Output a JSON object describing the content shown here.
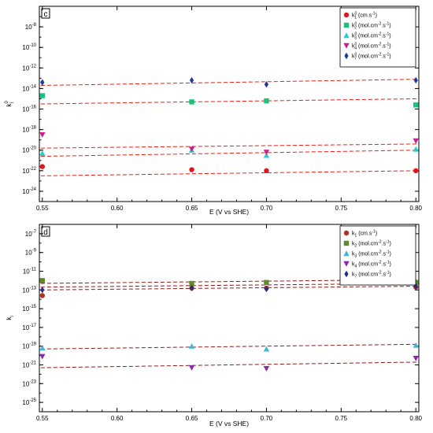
{
  "chart_data": [
    {
      "type": "scatter",
      "panel_label": "c",
      "xlabel": "E (V vs SHE)",
      "ylabel_main": "k",
      "ylabel_sub": "i",
      "ylabel_sup": "0",
      "y_scale": "log",
      "xlim": [
        0.548,
        0.802
      ],
      "ylim_exp": [
        -25,
        -6
      ],
      "x_ticks": [
        "0.55",
        "0.60",
        "0.65",
        "0.70",
        "0.75",
        "0.80"
      ],
      "y_ticks": [
        {
          "base": "10",
          "exp": "-8",
          "e": -8
        },
        {
          "base": "10",
          "exp": "-10",
          "e": -10
        },
        {
          "base": "10",
          "exp": "-12",
          "e": -12
        },
        {
          "base": "10",
          "exp": "-14",
          "e": -14
        },
        {
          "base": "10",
          "exp": "-16",
          "e": -16
        },
        {
          "base": "10",
          "exp": "-18",
          "e": -18
        },
        {
          "base": "10",
          "exp": "-20",
          "e": -20
        },
        {
          "base": "10",
          "exp": "-22",
          "e": -22
        },
        {
          "base": "10",
          "exp": "-24",
          "e": -24
        }
      ],
      "grid": false,
      "legend_position": "top-right",
      "fit_line_color": "#e0201a",
      "series": [
        {
          "name": "k₁⁰ (cm.s⁻¹)",
          "label_main": "k",
          "label_sup": "0",
          "label_sub": "1",
          "label_unit": " (cm.s",
          "label_unit_sup": "-1",
          "label_tail": ")",
          "color": "#e8121a",
          "marker": "circle",
          "x": [
            0.55,
            0.65,
            0.7,
            0.8
          ],
          "y_exp": [
            -21.6,
            -21.9,
            -22.0,
            -22.0
          ],
          "fit_exp": [
            -22.5,
            -22.0
          ]
        },
        {
          "name": "k₂⁰ (mol.cm⁻².s⁻¹)",
          "label_main": "k",
          "label_sup": "0",
          "label_sub": "2",
          "label_unit": " (mol.cm",
          "label_unit_sup": "-2",
          "label_mid": ".s",
          "label_mid_sup": "-1",
          "label_tail": ")",
          "color": "#19c47a",
          "marker": "square",
          "x": [
            0.55,
            0.65,
            0.7,
            0.8
          ],
          "y_exp": [
            -14.7,
            -15.3,
            -15.2,
            -15.6
          ],
          "fit_exp": [
            -15.5,
            -15.0
          ]
        },
        {
          "name": "k₃⁰ (mol.cm⁻².s⁻¹)",
          "label_main": "k",
          "label_sup": "0",
          "label_sub": "3",
          "label_unit": " (mol.cm",
          "label_unit_sup": "-2",
          "label_mid": ".s",
          "label_mid_sup": "-1",
          "label_tail": ")",
          "color": "#1fd0cc",
          "marker": "triangle-up",
          "x": [
            0.55,
            0.65,
            0.7,
            0.8
          ],
          "y_exp": [
            -20.3,
            -20.0,
            -20.5,
            -19.9
          ],
          "fit_exp": [
            -20.6,
            -20.0
          ]
        },
        {
          "name": "k₄⁰ (mol.cm⁻².s⁻¹)",
          "label_main": "k",
          "label_sup": "0",
          "label_sub": "4",
          "label_unit": " (mol.cm",
          "label_unit_sup": "-2",
          "label_mid": ".s",
          "label_mid_sup": "-1",
          "label_tail": ")",
          "color": "#cc1f8f",
          "marker": "triangle-down",
          "x": [
            0.55,
            0.65,
            0.7,
            0.8
          ],
          "y_exp": [
            -18.5,
            -19.9,
            -20.2,
            -19.1
          ],
          "fit_exp": [
            -19.8,
            -19.4
          ]
        },
        {
          "name": "k₇⁰ (mol.cm⁻².s⁻¹)",
          "label_main": "k",
          "label_sup": "0",
          "label_sub": "7",
          "label_unit": " (mol.cm",
          "label_unit_sup": "-2",
          "label_mid": ".s",
          "label_mid_sup": "-1",
          "label_tail": ")",
          "color": "#1a3a9c",
          "marker": "diamond",
          "x": [
            0.55,
            0.65,
            0.7,
            0.8
          ],
          "y_exp": [
            -13.4,
            -13.2,
            -13.6,
            -13.2
          ],
          "fit_exp": [
            -13.7,
            -13.1
          ]
        }
      ]
    },
    {
      "type": "scatter",
      "panel_label": "d",
      "xlabel": "E (V vs SHE)",
      "ylabel_main": "k",
      "ylabel_sub": "i",
      "ylabel_sup": "",
      "y_scale": "log",
      "xlim": [
        0.548,
        0.802
      ],
      "ylim_exp": [
        -26,
        -6
      ],
      "x_ticks": [
        "0.55",
        "0.60",
        "0.65",
        "0.70",
        "0.75",
        "0.80"
      ],
      "y_ticks": [
        {
          "base": "10",
          "exp": "-7",
          "e": -7
        },
        {
          "base": "10",
          "exp": "-9",
          "e": -9
        },
        {
          "base": "10",
          "exp": "-11",
          "e": -11
        },
        {
          "base": "10",
          "exp": "-13",
          "e": -13
        },
        {
          "base": "10",
          "exp": "-15",
          "e": -15
        },
        {
          "base": "10",
          "exp": "-17",
          "e": -17
        },
        {
          "base": "10",
          "exp": "-19",
          "e": -19
        },
        {
          "base": "10",
          "exp": "-21",
          "e": -21
        },
        {
          "base": "10",
          "exp": "-23",
          "e": -23
        },
        {
          "base": "10",
          "exp": "-25",
          "e": -25
        }
      ],
      "grid": false,
      "legend_position": "top-right",
      "fit_line_color": "#8b1a1a",
      "series": [
        {
          "name": "k₁ (cm.s⁻¹)",
          "label_main": "k",
          "label_sup": "",
          "label_sub": "1",
          "label_unit": " (cm.s",
          "label_unit_sup": "-1",
          "label_tail": ")",
          "color": "#b5301c",
          "marker": "circle",
          "x": [
            0.55,
            0.65,
            0.7,
            0.8
          ],
          "y_exp": [
            -13.6,
            -12.8,
            -12.8,
            -12.7
          ],
          "fit_exp": [
            -13.0,
            -12.6
          ]
        },
        {
          "name": "k₂ (mol.cm⁻².s⁻¹)",
          "label_main": "k",
          "label_sup": "",
          "label_sub": "2",
          "label_unit": " (mol.cm",
          "label_unit_sup": "-2",
          "label_mid": ".s",
          "label_mid_sup": "-1",
          "label_tail": ")",
          "color": "#5f8a2e",
          "marker": "square",
          "x": [
            0.55,
            0.65,
            0.7,
            0.8
          ],
          "y_exp": [
            -12.0,
            -12.3,
            -12.2,
            -12.2
          ],
          "fit_exp": [
            -12.3,
            -11.9
          ]
        },
        {
          "name": "k₃ (mol.cm⁻².s⁻¹)",
          "label_main": "k",
          "label_sup": "",
          "label_sub": "3",
          "label_unit": " (mol.cm",
          "label_unit_sup": "-2",
          "label_mid": ".s",
          "label_mid_sup": "-1",
          "label_tail": ")",
          "color": "#3fb8d8",
          "marker": "triangle-up",
          "x": [
            0.55,
            0.65,
            0.7,
            0.8
          ],
          "y_exp": [
            -19.2,
            -19.0,
            -19.3,
            -18.9
          ],
          "fit_exp": [
            -19.3,
            -18.8
          ]
        },
        {
          "name": "k₄ (mol.cm⁻².s⁻¹)",
          "label_main": "k",
          "label_sup": "",
          "label_sub": "4",
          "label_unit": " (mol.cm",
          "label_unit_sup": "-2",
          "label_mid": ".s",
          "label_mid_sup": "-1",
          "label_tail": ")",
          "color": "#8a2aa8",
          "marker": "triangle-down",
          "x": [
            0.55,
            0.65,
            0.7,
            0.8
          ],
          "y_exp": [
            -20.1,
            -21.3,
            -21.4,
            -20.3
          ],
          "fit_exp": [
            -21.3,
            -20.7
          ]
        },
        {
          "name": "k₇ (mol.cm⁻².s⁻¹)",
          "label_main": "k",
          "label_sup": "",
          "label_sub": "7",
          "label_unit": " (mol.cm",
          "label_unit_sup": "-2",
          "label_mid": ".s",
          "label_mid_sup": "-1",
          "label_tail": ")",
          "color": "#1f2f8a",
          "marker": "diamond",
          "x": [
            0.55,
            0.65,
            0.7,
            0.8
          ],
          "y_exp": [
            -13.0,
            -12.8,
            -12.9,
            -12.6
          ],
          "fit_exp": [
            -12.7,
            -12.3
          ]
        }
      ]
    }
  ]
}
